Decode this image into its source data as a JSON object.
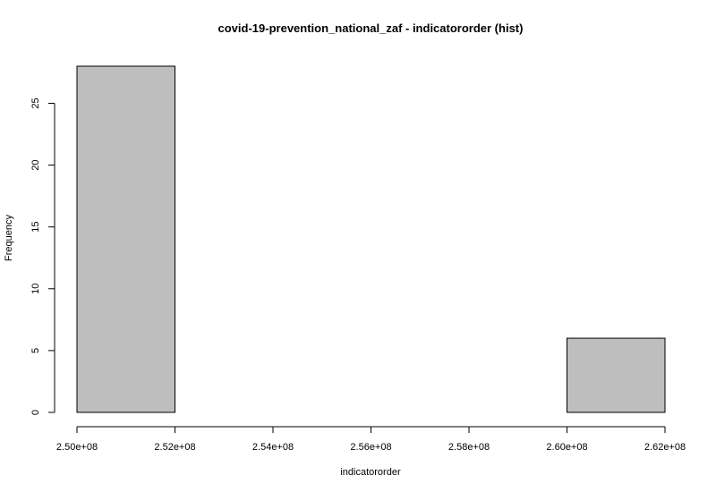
{
  "chart_data": {
    "type": "bar",
    "title": "covid-19-prevention_national_zaf - indicatororder (hist)",
    "xlabel": "indicatororder",
    "ylabel": "Frequency",
    "bins": [
      {
        "start": 250000000,
        "end": 252000000,
        "count": 28
      },
      {
        "start": 252000000,
        "end": 254000000,
        "count": 0
      },
      {
        "start": 254000000,
        "end": 256000000,
        "count": 0
      },
      {
        "start": 256000000,
        "end": 258000000,
        "count": 0
      },
      {
        "start": 258000000,
        "end": 260000000,
        "count": 0
      },
      {
        "start": 260000000,
        "end": 262000000,
        "count": 6
      }
    ],
    "xlim": [
      250000000,
      262000000
    ],
    "ylim": [
      0,
      28
    ],
    "x_ticks": [
      250000000,
      252000000,
      254000000,
      256000000,
      258000000,
      260000000,
      262000000
    ],
    "x_tick_labels": [
      "2.50e+08",
      "2.52e+08",
      "2.54e+08",
      "2.56e+08",
      "2.58e+08",
      "2.60e+08",
      "2.62e+08"
    ],
    "y_ticks": [
      0,
      5,
      10,
      15,
      20,
      25
    ],
    "y_tick_labels": [
      "0",
      "5",
      "10",
      "15",
      "20",
      "25"
    ],
    "bar_color": "#bebebe",
    "grid": false
  }
}
